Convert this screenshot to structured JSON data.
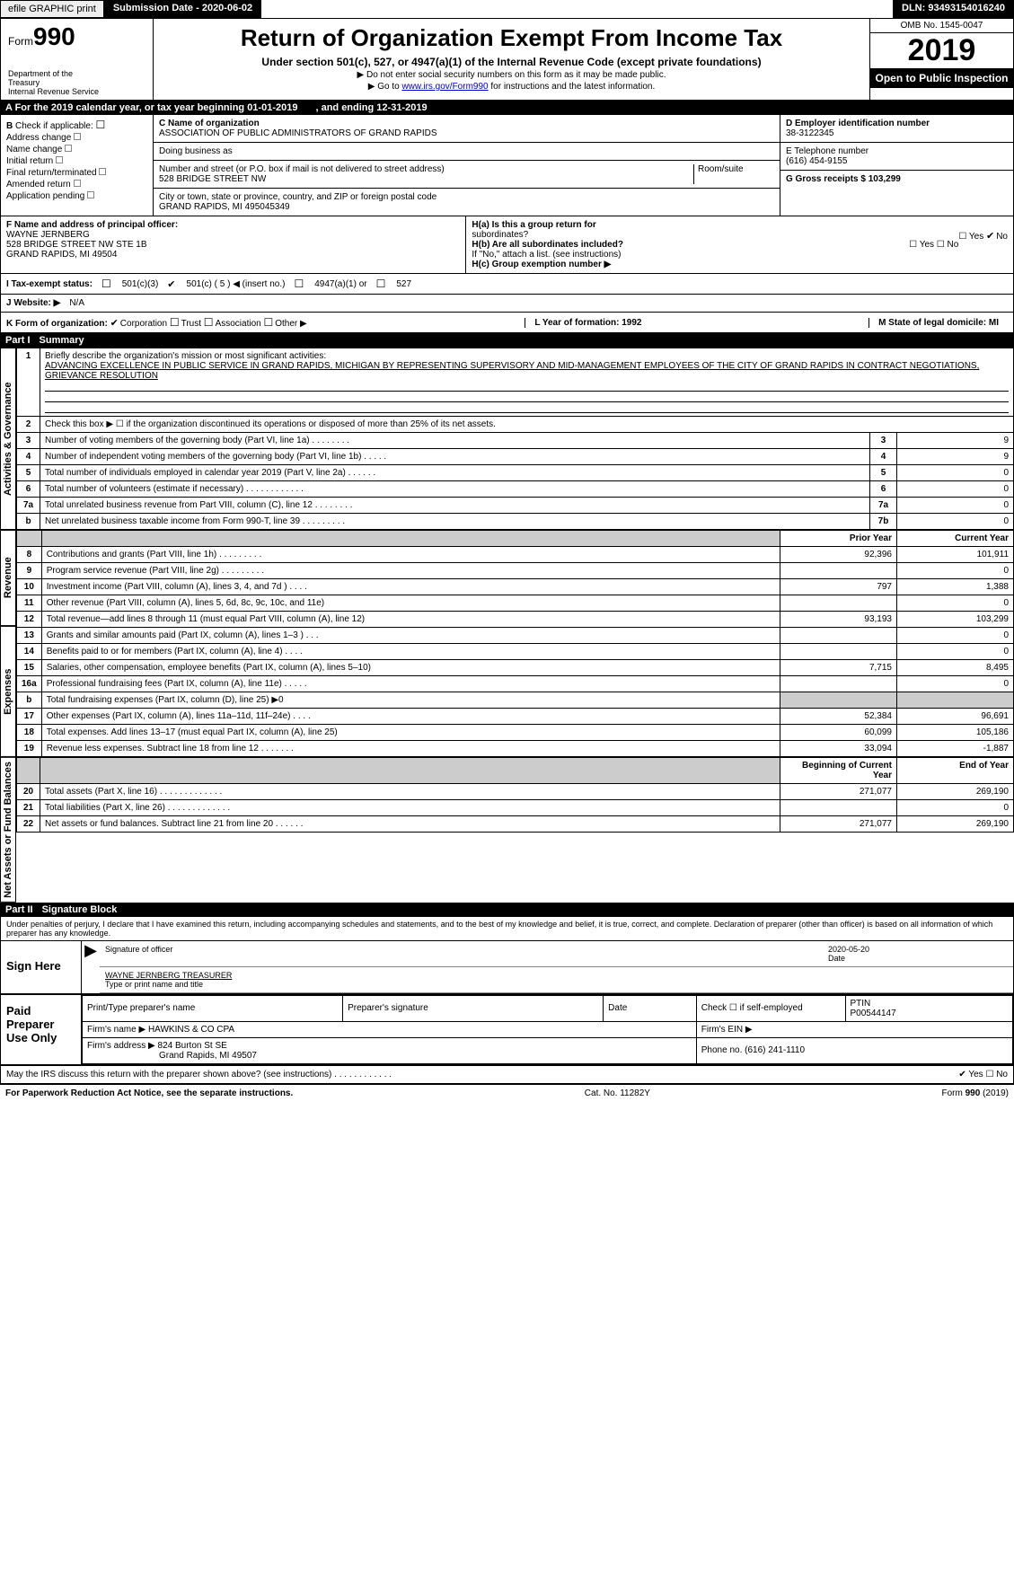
{
  "topbar": {
    "efile": "efile GRAPHIC print",
    "submission": "Submission Date - 2020-06-02",
    "dln": "DLN: 93493154016240"
  },
  "header": {
    "form_word": "Form",
    "form_num": "990",
    "dept1": "Department of the",
    "dept2": "Treasury",
    "dept3": "Internal Revenue Service",
    "title": "Return of Organization Exempt From Income Tax",
    "sub1": "Under section 501(c), 527, or 4947(a)(1) of the Internal Revenue Code (except private foundations)",
    "sub2": "▶ Do not enter social security numbers on this form as it may be made public.",
    "sub3_pre": "▶ Go to ",
    "sub3_link": "www.irs.gov/Form990",
    "sub3_post": " for instructions and the latest information.",
    "omb": "OMB No. 1545-0047",
    "year": "2019",
    "open": "Open to Public Inspection"
  },
  "lineA": {
    "label": "A   For the 2019 calendar year, or tax year beginning 01-01-2019",
    "mid": ", and ending 12-31-2019"
  },
  "colB": {
    "title": "B",
    "check_if": "Check if applicable:",
    "opts": [
      "Address change",
      "Name change",
      "Initial return",
      "Final return/terminated",
      "Amended return",
      "Application pending"
    ]
  },
  "colC": {
    "c_lbl": "C Name of organization",
    "c_val": "ASSOCIATION OF PUBLIC ADMINISTRATORS OF GRAND RAPIDS",
    "dba_lbl": "Doing business as",
    "addr_lbl": "Number and street (or P.O. box if mail is not delivered to street address)",
    "addr_val": "528 BRIDGE STREET NW",
    "room_lbl": "Room/suite",
    "city_lbl": "City or town, state or province, country, and ZIP or foreign postal code",
    "city_val": "GRAND RAPIDS, MI  495045349"
  },
  "colD": {
    "d_lbl": "D Employer identification number",
    "d_val": "38-3122345",
    "e_lbl": "E Telephone number",
    "e_val": "(616) 454-9155",
    "g_lbl": "G Gross receipts $ 103,299"
  },
  "lineF": {
    "lbl": "F  Name and address of principal officer:",
    "name": "WAYNE JERNBERG",
    "addr1": "528 BRIDGE STREET NW STE 1B",
    "addr2": "GRAND RAPIDS, MI  49504"
  },
  "lineH": {
    "ha": "H(a)   Is this a group return for",
    "ha2": "subordinates?",
    "ha_yn": "Yes ✔ No",
    "hb": "H(b)   Are all subordinates included?",
    "hb_yn": "Yes      No",
    "hb_note": "If \"No,\" attach a list. (see instructions)",
    "hc": "H(c)   Group exemption number ▶"
  },
  "lineI": {
    "lbl": "I      Tax-exempt status:",
    "o1": "501(c)(3)",
    "o2": "501(c) ( 5 ) ◀ (insert no.)",
    "o3": "4947(a)(1) or",
    "o4": "527"
  },
  "lineJ": {
    "lbl": "J    Website: ▶",
    "val": "N/A"
  },
  "lineK": {
    "lbl": "K Form of organization:",
    "o1": "Corporation",
    "o2": "Trust",
    "o3": "Association",
    "o4": "Other ▶"
  },
  "lineL": {
    "lbl": "L Year of formation: 1992"
  },
  "lineM": {
    "lbl": "M State of legal domicile: MI"
  },
  "partI": {
    "num": "Part I",
    "title": "Summary"
  },
  "summary": {
    "l1_lbl": "Briefly describe the organization's mission or most significant activities:",
    "l1_txt": "ADVANCING EXCELLENCE IN PUBLIC SERVICE IN GRAND RAPIDS, MICHIGAN BY REPRESENTING SUPERVISORY AND MID-MANAGEMENT EMPLOYEES OF THE CITY OF GRAND RAPIDS IN CONTRACT NEGOTIATIONS, GRIEVANCE RESOLUTION",
    "l2": "Check this box ▶ ☐ if the organization discontinued its operations or disposed of more than 25% of its net assets.",
    "l3": "Number of voting members of the governing body (Part VI, line 1a)   .    .    .    .    .    .    .    .",
    "l3v": "9",
    "l4": "Number of independent voting members of the governing body (Part VI, line 1b)   .    .    .    .    .",
    "l4v": "9",
    "l5": "Total number of individuals employed in calendar year 2019 (Part V, line 2a)   .    .    .    .    .    .",
    "l5v": "0",
    "l6": "Total number of volunteers (estimate if necessary)   .    .    .    .    .    .    .    .    .    .    .    .",
    "l6v": "0",
    "l7a": "Total unrelated business revenue from Part VIII, column (C), line 12   .    .    .    .    .    .    .    .",
    "l7av": "0",
    "l7b": "Net unrelated business taxable income from Form 990-T, line 39   .    .    .    .    .    .    .    .    .",
    "l7bv": "0"
  },
  "revexp": {
    "hdr_prior": "Prior Year",
    "hdr_curr": "Current Year",
    "rows": [
      {
        "n": "8",
        "d": "Contributions and grants (Part VIII, line 1h)   .    .    .    .    .    .    .    .    .",
        "p": "92,396",
        "c": "101,911"
      },
      {
        "n": "9",
        "d": "Program service revenue (Part VIII, line 2g)   .    .    .    .    .    .    .    .    .",
        "p": "",
        "c": "0"
      },
      {
        "n": "10",
        "d": "Investment income (Part VIII, column (A), lines 3, 4, and 7d )   .    .    .    .",
        "p": "797",
        "c": "1,388"
      },
      {
        "n": "11",
        "d": "Other revenue (Part VIII, column (A), lines 5, 6d, 8c, 9c, 10c, and 11e)",
        "p": "",
        "c": "0"
      },
      {
        "n": "12",
        "d": "Total revenue—add lines 8 through 11 (must equal Part VIII, column (A), line 12)",
        "p": "93,193",
        "c": "103,299"
      },
      {
        "n": "13",
        "d": "Grants and similar amounts paid (Part IX, column (A), lines 1–3 )   .    .    .",
        "p": "",
        "c": "0"
      },
      {
        "n": "14",
        "d": "Benefits paid to or for members (Part IX, column (A), line 4)   .    .    .    .",
        "p": "",
        "c": "0"
      },
      {
        "n": "15",
        "d": "Salaries, other compensation, employee benefits (Part IX, column (A), lines 5–10)",
        "p": "7,715",
        "c": "8,495"
      },
      {
        "n": "16a",
        "d": "Professional fundraising fees (Part IX, column (A), line 11e)   .    .    .    .    .",
        "p": "",
        "c": "0"
      },
      {
        "n": "b",
        "d": "Total fundraising expenses (Part IX, column (D), line 25) ▶0",
        "p": "shade",
        "c": "shade"
      },
      {
        "n": "17",
        "d": "Other expenses (Part IX, column (A), lines 11a–11d, 11f–24e)   .    .    .    .",
        "p": "52,384",
        "c": "96,691"
      },
      {
        "n": "18",
        "d": "Total expenses. Add lines 13–17 (must equal Part IX, column (A), line 25)",
        "p": "60,099",
        "c": "105,186"
      },
      {
        "n": "19",
        "d": "Revenue less expenses. Subtract line 18 from line 12   .    .    .    .    .    .    .",
        "p": "33,094",
        "c": "-1,887"
      }
    ]
  },
  "netassets": {
    "hdr_beg": "Beginning of Current Year",
    "hdr_end": "End of Year",
    "rows": [
      {
        "n": "20",
        "d": "Total assets (Part X, line 16)   .    .    .    .    .    .    .    .    .    .    .    .    .",
        "b": "271,077",
        "e": "269,190"
      },
      {
        "n": "21",
        "d": "Total liabilities (Part X, line 26)   .    .    .    .    .    .    .    .    .    .    .    .    .",
        "b": "",
        "e": "0"
      },
      {
        "n": "22",
        "d": "Net assets or fund balances. Subtract line 21 from line 20   .    .    .    .    .    .",
        "b": "271,077",
        "e": "269,190"
      }
    ]
  },
  "partII": {
    "num": "Part II",
    "title": "Signature Block"
  },
  "penalties": "Under penalties of perjury, I declare that I have examined this return, including accompanying schedules and statements, and to the best of my knowledge and belief, it is true, correct, and complete. Declaration of preparer (other than officer) is based on all information of which preparer has any knowledge.",
  "sign": {
    "here": "Sign Here",
    "sig_officer": "Signature of officer",
    "date_lbl": "Date",
    "date_val": "2020-05-20",
    "name": "WAYNE JERNBERG TREASURER",
    "name_lbl": "Type or print name and title"
  },
  "paid": {
    "title1": "Paid",
    "title2": "Preparer",
    "title3": "Use Only",
    "c1": "Print/Type preparer's name",
    "c2": "Preparer's signature",
    "c3": "Date",
    "c4_chk": "Check ☐ if self-employed",
    "c5_lbl": "PTIN",
    "c5_val": "P00544147",
    "firm_lbl": "Firm's name    ▶",
    "firm_val": "HAWKINS & CO CPA",
    "ein_lbl": "Firm's EIN ▶",
    "addr_lbl": "Firm's address ▶",
    "addr_val1": "824 Burton St SE",
    "addr_val2": "Grand Rapids, MI  49507",
    "phone_lbl": "Phone no. (616) 241-1110"
  },
  "discuss": {
    "q": "May the IRS discuss this return with the preparer shown above? (see instructions)   .    .    .    .    .    .    .    .    .    .    .    .",
    "a": "✔ Yes  ☐ No"
  },
  "footer": {
    "left": "For Paperwork Reduction Act Notice, see the separate instructions.",
    "mid": "Cat. No. 11282Y",
    "right": "Form 990 (2019)"
  },
  "vert": {
    "act": "Activities & Governance",
    "rev": "Revenue",
    "exp": "Expenses",
    "net": "Net Assets or Fund Balances"
  }
}
